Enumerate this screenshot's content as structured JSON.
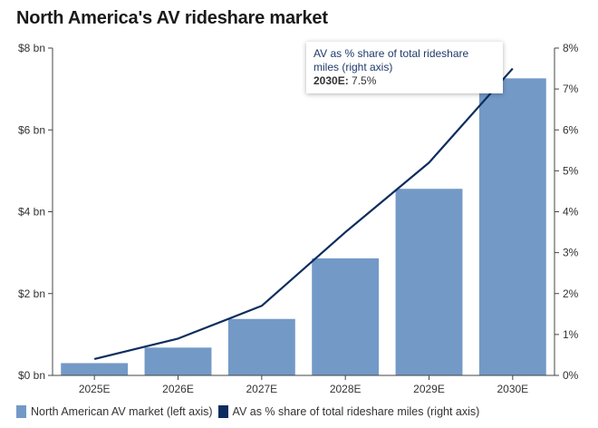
{
  "chart_data": {
    "type": "bar",
    "title": "North America's AV rideshare market",
    "categories": [
      "2025E",
      "2026E",
      "2027E",
      "2028E",
      "2029E",
      "2030E"
    ],
    "series": [
      {
        "name": "North American AV market (left axis)",
        "kind": "bar",
        "axis": "left",
        "values": [
          0.3,
          0.68,
          1.38,
          2.86,
          4.56,
          7.26
        ],
        "color": "#7399c6"
      },
      {
        "name": "AV as % share of total rideshare miles (right axis)",
        "kind": "line",
        "axis": "right",
        "values": [
          0.4,
          0.9,
          1.7,
          3.5,
          5.2,
          7.5
        ],
        "color": "#0c2d5e"
      }
    ],
    "left_axis": {
      "ylim": [
        0,
        8
      ],
      "ticks": [
        "$0 bn",
        "$2 bn",
        "$4 bn",
        "$6 bn",
        "$8 bn"
      ]
    },
    "right_axis": {
      "ylim": [
        0,
        8
      ],
      "ticks": [
        "0%",
        "1%",
        "2%",
        "3%",
        "4%",
        "5%",
        "6%",
        "7%",
        "8%"
      ]
    },
    "grid": "none",
    "legend_position": "bottom"
  },
  "tooltip": {
    "series": "AV as % share of total rideshare miles (right axis)",
    "year": "2030E:",
    "value": "7.5%"
  }
}
